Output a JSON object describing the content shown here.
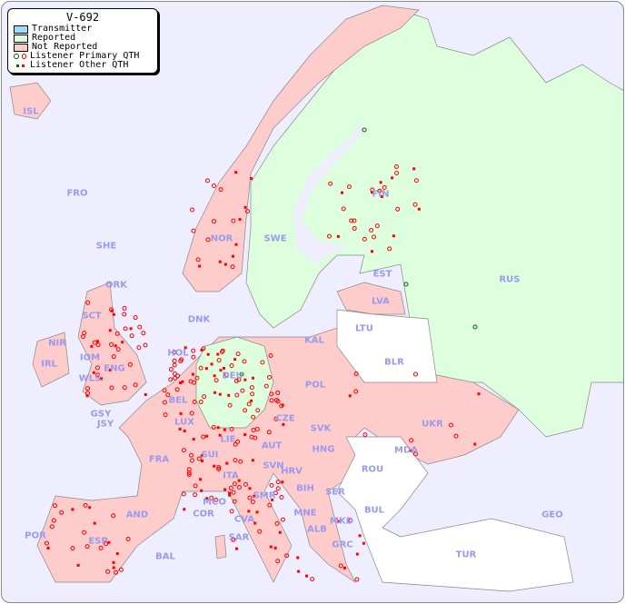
{
  "legend": {
    "title": "V-692",
    "items": [
      {
        "label": "Transmitter",
        "color": "#99ddff"
      },
      {
        "label": "Reported",
        "color": "#ddffdd"
      },
      {
        "label": "Not Reported",
        "color": "#ffcccc"
      },
      {
        "label": "Listener Primary QTH",
        "marker": "ring",
        "colors": [
          "#006600",
          "#ff0000"
        ]
      },
      {
        "label": "Listener Other QTH",
        "marker": "square",
        "colors": [
          "#006600",
          "#ff0000"
        ]
      }
    ]
  },
  "colors": {
    "sea": "#eeeeff",
    "reported": "#ddffdd",
    "not_reported": "#ffcccc",
    "no_data": "#ffffff",
    "label": "#9999ee",
    "listener": "#ff0000",
    "listener_reported": "#006600"
  },
  "countries": [
    "ISL",
    "FRO",
    "SHE",
    "ORK",
    "NOR",
    "SWE",
    "FIN",
    "RUS",
    "EST",
    "LVA",
    "LTU",
    "KAL",
    "BLR",
    "POL",
    "HOL",
    "DNK",
    "DEU",
    "IRL",
    "NIR",
    "SCT",
    "IOM",
    "WLS",
    "ENG",
    "GSY",
    "JSY",
    "BEL",
    "LUX",
    "FRA",
    "SUI",
    "LIE",
    "AUT",
    "CZE",
    "SVK",
    "HNG",
    "UKR",
    "MDA",
    "ROU",
    "SVN",
    "HRV",
    "BIH",
    "SER",
    "MNE",
    "ALB",
    "MKD",
    "BUL",
    "GRC",
    "TUR",
    "GEO",
    "ITA",
    "SMR",
    "MCO",
    "COR",
    "CVA",
    "SAR",
    "AND",
    "ESP",
    "POR",
    "BAL"
  ]
}
